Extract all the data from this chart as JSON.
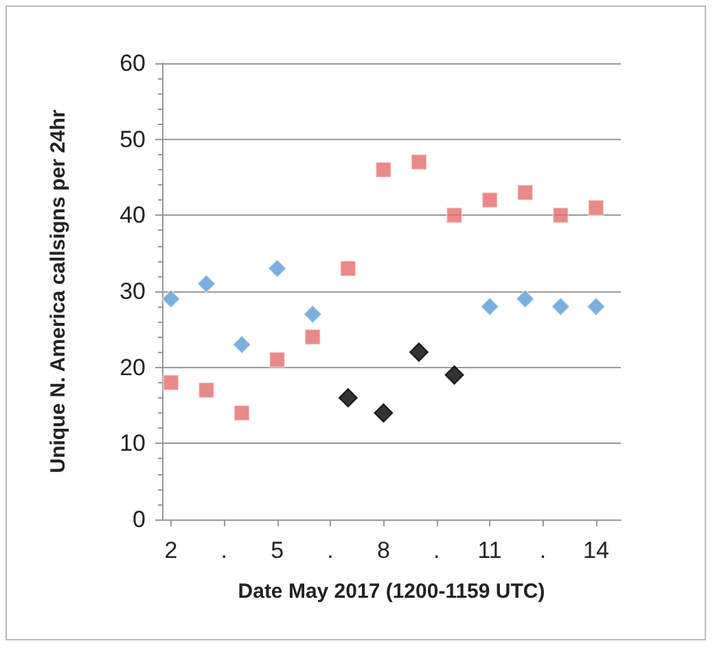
{
  "chart_data": {
    "type": "scatter",
    "xlabel": "Date May 2017 (1200-1159 UTC)",
    "ylabel": "Unique N. America callsigns per 24hr",
    "x": [
      2,
      3,
      4,
      5,
      6,
      7,
      8,
      9,
      10,
      11,
      12,
      13,
      14
    ],
    "series": [
      {
        "color": "#5b9bd5",
        "marker": "diamond",
        "values": [
          29,
          31,
          23,
          33,
          27,
          null,
          null,
          null,
          null,
          28,
          29,
          28,
          28
        ]
      },
      {
        "color": "#e46c6c",
        "marker": "square",
        "values": [
          18,
          17,
          14,
          21,
          24,
          33,
          46,
          47,
          40,
          42,
          43,
          40,
          41
        ]
      },
      {
        "color": "#000000",
        "marker": "diamond",
        "values": [
          null,
          null,
          null,
          null,
          null,
          16,
          14,
          22,
          19,
          null,
          null,
          null,
          null
        ]
      }
    ],
    "xlim": [
      1.75,
      14.7
    ],
    "xticks": [
      2,
      {
        "value": 3.5,
        "label": "."
      },
      5,
      {
        "value": 6.5,
        "label": "."
      },
      8,
      {
        "value": 9.5,
        "label": "."
      },
      11,
      {
        "value": 12.5,
        "label": "."
      },
      14
    ],
    "ylim": [
      0,
      60
    ],
    "yticks": [
      0,
      10,
      20,
      30,
      40,
      50,
      60
    ],
    "grid": "y"
  }
}
